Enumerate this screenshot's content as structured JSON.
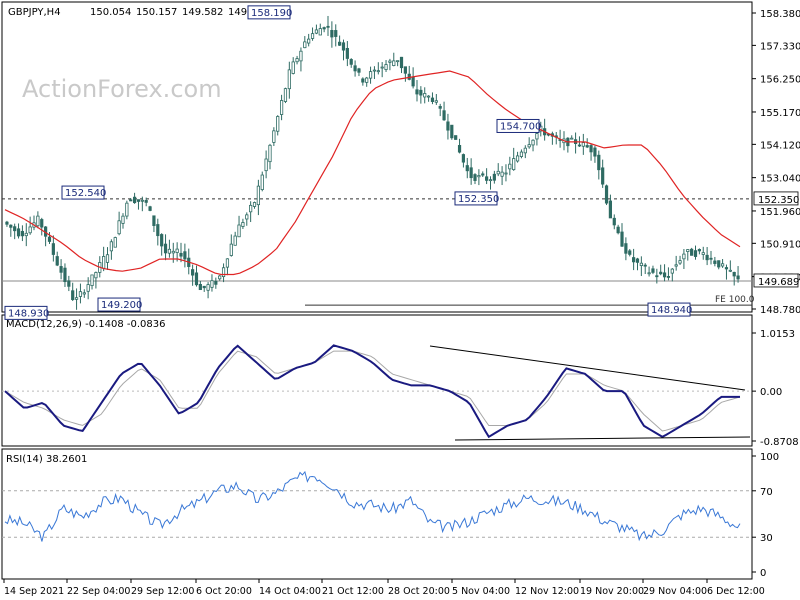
{
  "header": {
    "symbol": "GBPJPY,H4",
    "open": "150.054",
    "high": "150.157",
    "low": "149.582",
    "close": "149.689"
  },
  "watermark": "ActionForex.com",
  "colors": {
    "background": "#ffffff",
    "candle": "#2e6b63",
    "ma": "#e02424",
    "macd": "#1a1a80",
    "signal": "#a8a8a8",
    "rsi": "#3a78d6",
    "axis": "#000000",
    "grid_dash": "#9a9a9a",
    "label_border": "#1a2a7a"
  },
  "chart_data": [
    {
      "type": "candlestick",
      "panel": "price",
      "ylim": [
        148.78,
        158.38
      ],
      "y_ticks": [
        "158.380",
        "157.330",
        "156.250",
        "155.170",
        "154.120",
        "153.040",
        "151.960",
        "150.910",
        "149.830",
        "148.780"
      ],
      "current_price": "149.689",
      "price_path": [
        151.6,
        151.2,
        151.7,
        150.3,
        149.0,
        149.8,
        150.8,
        152.4,
        152.2,
        150.6,
        150.6,
        149.4,
        149.7,
        151.3,
        152.2,
        154.3,
        156.5,
        157.6,
        158.0,
        157.2,
        156.2,
        156.6,
        156.9,
        155.8,
        155.6,
        154.5,
        153.1,
        153.0,
        153.2,
        154.0,
        154.6,
        154.2,
        154.2,
        153.9,
        151.5,
        150.4,
        150.0,
        149.8,
        150.6,
        150.6,
        150.2,
        149.7
      ],
      "ma_path": [
        152.0,
        151.7,
        151.3,
        150.9,
        150.4,
        150.1,
        150.0,
        150.1,
        150.4,
        150.4,
        150.2,
        149.9,
        149.9,
        150.2,
        150.7,
        151.6,
        152.7,
        153.8,
        155.1,
        155.9,
        156.2,
        156.3,
        156.4,
        156.5,
        156.3,
        155.7,
        155.2,
        154.8,
        154.5,
        154.2,
        154.2,
        154.0,
        154.1,
        154.1,
        153.4,
        152.5,
        151.8,
        151.2,
        150.8
      ],
      "hlines": [
        {
          "label": "152.350",
          "value": 152.35,
          "style": "dashed"
        },
        {
          "label": "149.689",
          "value": 149.689,
          "style": "solid"
        }
      ],
      "annotations": [
        {
          "text": "158.190",
          "value": 158.19
        },
        {
          "text": "152.540",
          "value": 152.54
        },
        {
          "text": "148.930",
          "value": 148.93
        },
        {
          "text": "149.200",
          "value": 149.2
        },
        {
          "text": "154.700",
          "value": 154.7
        },
        {
          "text": "152.350",
          "value": 152.35
        },
        {
          "text": "148.940",
          "value": 148.94
        },
        {
          "text": "FE 100.0",
          "value": 148.94
        }
      ]
    },
    {
      "type": "line",
      "panel": "macd",
      "label": "MACD(12,26,9) -0.1408 -0.0836",
      "ylim": [
        -0.8708,
        1.0153
      ],
      "y_ticks": [
        "1.0153",
        "0.00",
        "-0.8708"
      ],
      "series": [
        {
          "name": "MACD",
          "values": [
            0.0,
            -0.3,
            -0.2,
            -0.6,
            -0.7,
            -0.2,
            0.3,
            0.5,
            0.1,
            -0.4,
            -0.2,
            0.4,
            0.8,
            0.5,
            0.2,
            0.4,
            0.5,
            0.8,
            0.7,
            0.5,
            0.2,
            0.1,
            0.1,
            0.0,
            -0.2,
            -0.8,
            -0.6,
            -0.5,
            -0.1,
            0.4,
            0.3,
            0.0,
            0.0,
            -0.6,
            -0.8,
            -0.6,
            -0.4,
            -0.1,
            -0.1
          ]
        },
        {
          "name": "Signal",
          "values": [
            0.0,
            -0.2,
            -0.3,
            -0.5,
            -0.6,
            -0.4,
            0.1,
            0.4,
            0.2,
            -0.3,
            -0.3,
            0.3,
            0.7,
            0.6,
            0.3,
            0.4,
            0.5,
            0.7,
            0.7,
            0.6,
            0.3,
            0.2,
            0.1,
            0.0,
            -0.1,
            -0.6,
            -0.6,
            -0.5,
            -0.2,
            0.3,
            0.3,
            0.1,
            0.0,
            -0.4,
            -0.7,
            -0.6,
            -0.5,
            -0.2,
            -0.1
          ]
        }
      ]
    },
    {
      "type": "line",
      "panel": "rsi",
      "label": "RSI(14) 38.2601",
      "ylim": [
        0,
        100
      ],
      "y_ticks": [
        "100",
        "70",
        "30",
        "0"
      ],
      "levels": [
        70,
        30
      ],
      "series": [
        {
          "name": "RSI",
          "values": [
            45,
            42,
            30,
            55,
            48,
            60,
            64,
            50,
            40,
            52,
            60,
            70,
            75,
            62,
            68,
            80,
            84,
            74,
            60,
            58,
            54,
            62,
            42,
            38,
            44,
            52,
            58,
            64,
            62,
            60,
            54,
            44,
            38,
            30,
            36,
            50,
            55,
            48,
            38
          ]
        }
      ]
    }
  ],
  "x_axis": {
    "labels": [
      "14 Sep 2021",
      "22 Sep 04:00",
      "29 Sep 12:00",
      "6 Oct 20:00",
      "14 Oct 04:00",
      "21 Oct 12:00",
      "28 Oct 20:00",
      "5 Nov 04:00",
      "12 Nov 12:00",
      "19 Nov 20:00",
      "29 Nov 04:00",
      "6 Dec 12:00"
    ]
  }
}
